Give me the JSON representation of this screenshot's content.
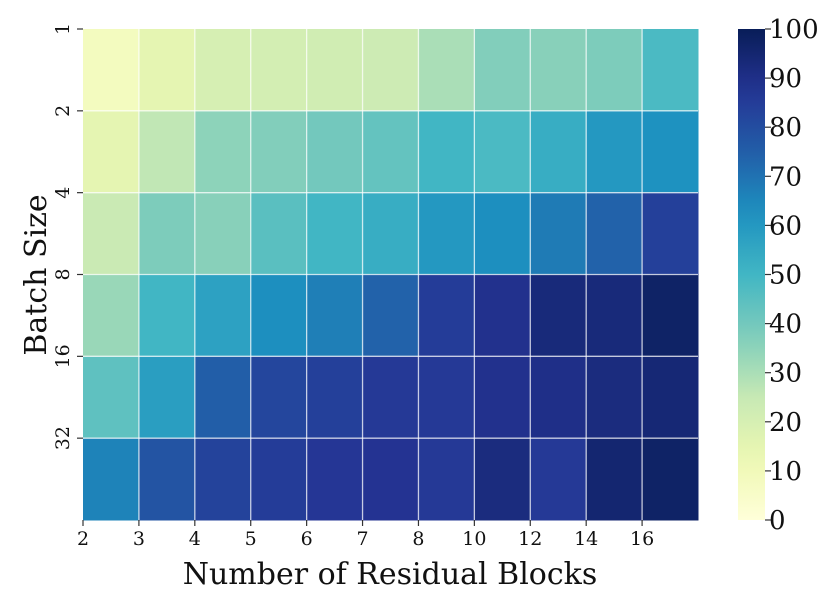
{
  "chart_data": {
    "type": "heatmap",
    "xlabel": "Number of Residual Blocks",
    "ylabel": "Batch Size",
    "x_ticks": [
      "2",
      "3",
      "4",
      "5",
      "6",
      "7",
      "8",
      "10",
      "12",
      "14",
      "16"
    ],
    "y_ticks": [
      "1",
      "2",
      "4",
      "8",
      "16",
      "32"
    ],
    "colorbar": {
      "colormap": "YlGnBu",
      "range": [
        0,
        100
      ],
      "ticks": [
        "0",
        "10",
        "20",
        "30",
        "40",
        "50",
        "60",
        "70",
        "80",
        "90",
        "100"
      ]
    },
    "grid": true,
    "values": [
      [
        8,
        15,
        20,
        21,
        22,
        23,
        30,
        37,
        36,
        38,
        48
      ],
      [
        15,
        26,
        35,
        37,
        40,
        43,
        50,
        48,
        53,
        60,
        62
      ],
      [
        24,
        38,
        36,
        45,
        50,
        53,
        60,
        63,
        68,
        74,
        84
      ],
      [
        33,
        50,
        57,
        63,
        67,
        74,
        85,
        89,
        93,
        93,
        97
      ],
      [
        44,
        58,
        75,
        82,
        84,
        86,
        86,
        89,
        90,
        92,
        94
      ],
      [
        66,
        78,
        83,
        85,
        87,
        88,
        86,
        92,
        86,
        95,
        97
      ]
    ]
  }
}
